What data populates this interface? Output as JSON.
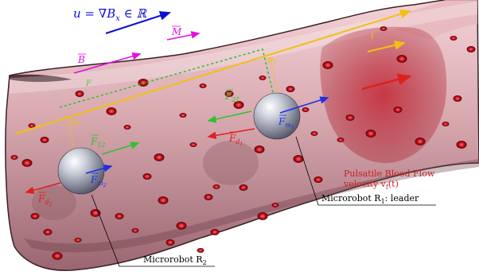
{
  "labels": {
    "u_eq": "u = ∇B",
    "u_sub": "x",
    "u_tail": " ∈ ℝ",
    "M": "M",
    "B": "B",
    "i": "i",
    "p1": "p",
    "p1_sub": "1",
    "p2": "p",
    "p2_sub": "2",
    "Fd1": "F",
    "Fd1_sub": "d",
    "Fd1_subsub": "1",
    "Fm1": "F",
    "Fm1_sub": "m",
    "Fm1_subsub": "1",
    "Fd2": "F",
    "Fd2_sub": "d",
    "Fd2_subsub": "2",
    "Fm2": "F",
    "Fm2_sub": "m",
    "Fm2_subsub": "2",
    "F12": "F",
    "F12_sub": "12",
    "F21": "F",
    "F21_sub": "21",
    "Fc": "F",
    "flow_line1": "Pulsatile Blood Flow",
    "flow_line2": "velocity v",
    "flow_sub": "f",
    "flow_tail": "(t)",
    "robot1": "Microrobot R",
    "robot1_sub": "1",
    "robot1_tail": ": leader",
    "robot2": "Microrobot R",
    "robot2_sub": "2"
  },
  "colors": {
    "vessel": "#c8909a",
    "vessel_dark": "#6a4048",
    "blood_cell": "#b00e16",
    "drag": "#e02020",
    "magnetic": "#2030e0",
    "interaction": "#30c030",
    "gradient_u": "#1010d0",
    "field_B": "#e010e0",
    "path": "#f2c010",
    "flow_text": "#cc2020"
  }
}
